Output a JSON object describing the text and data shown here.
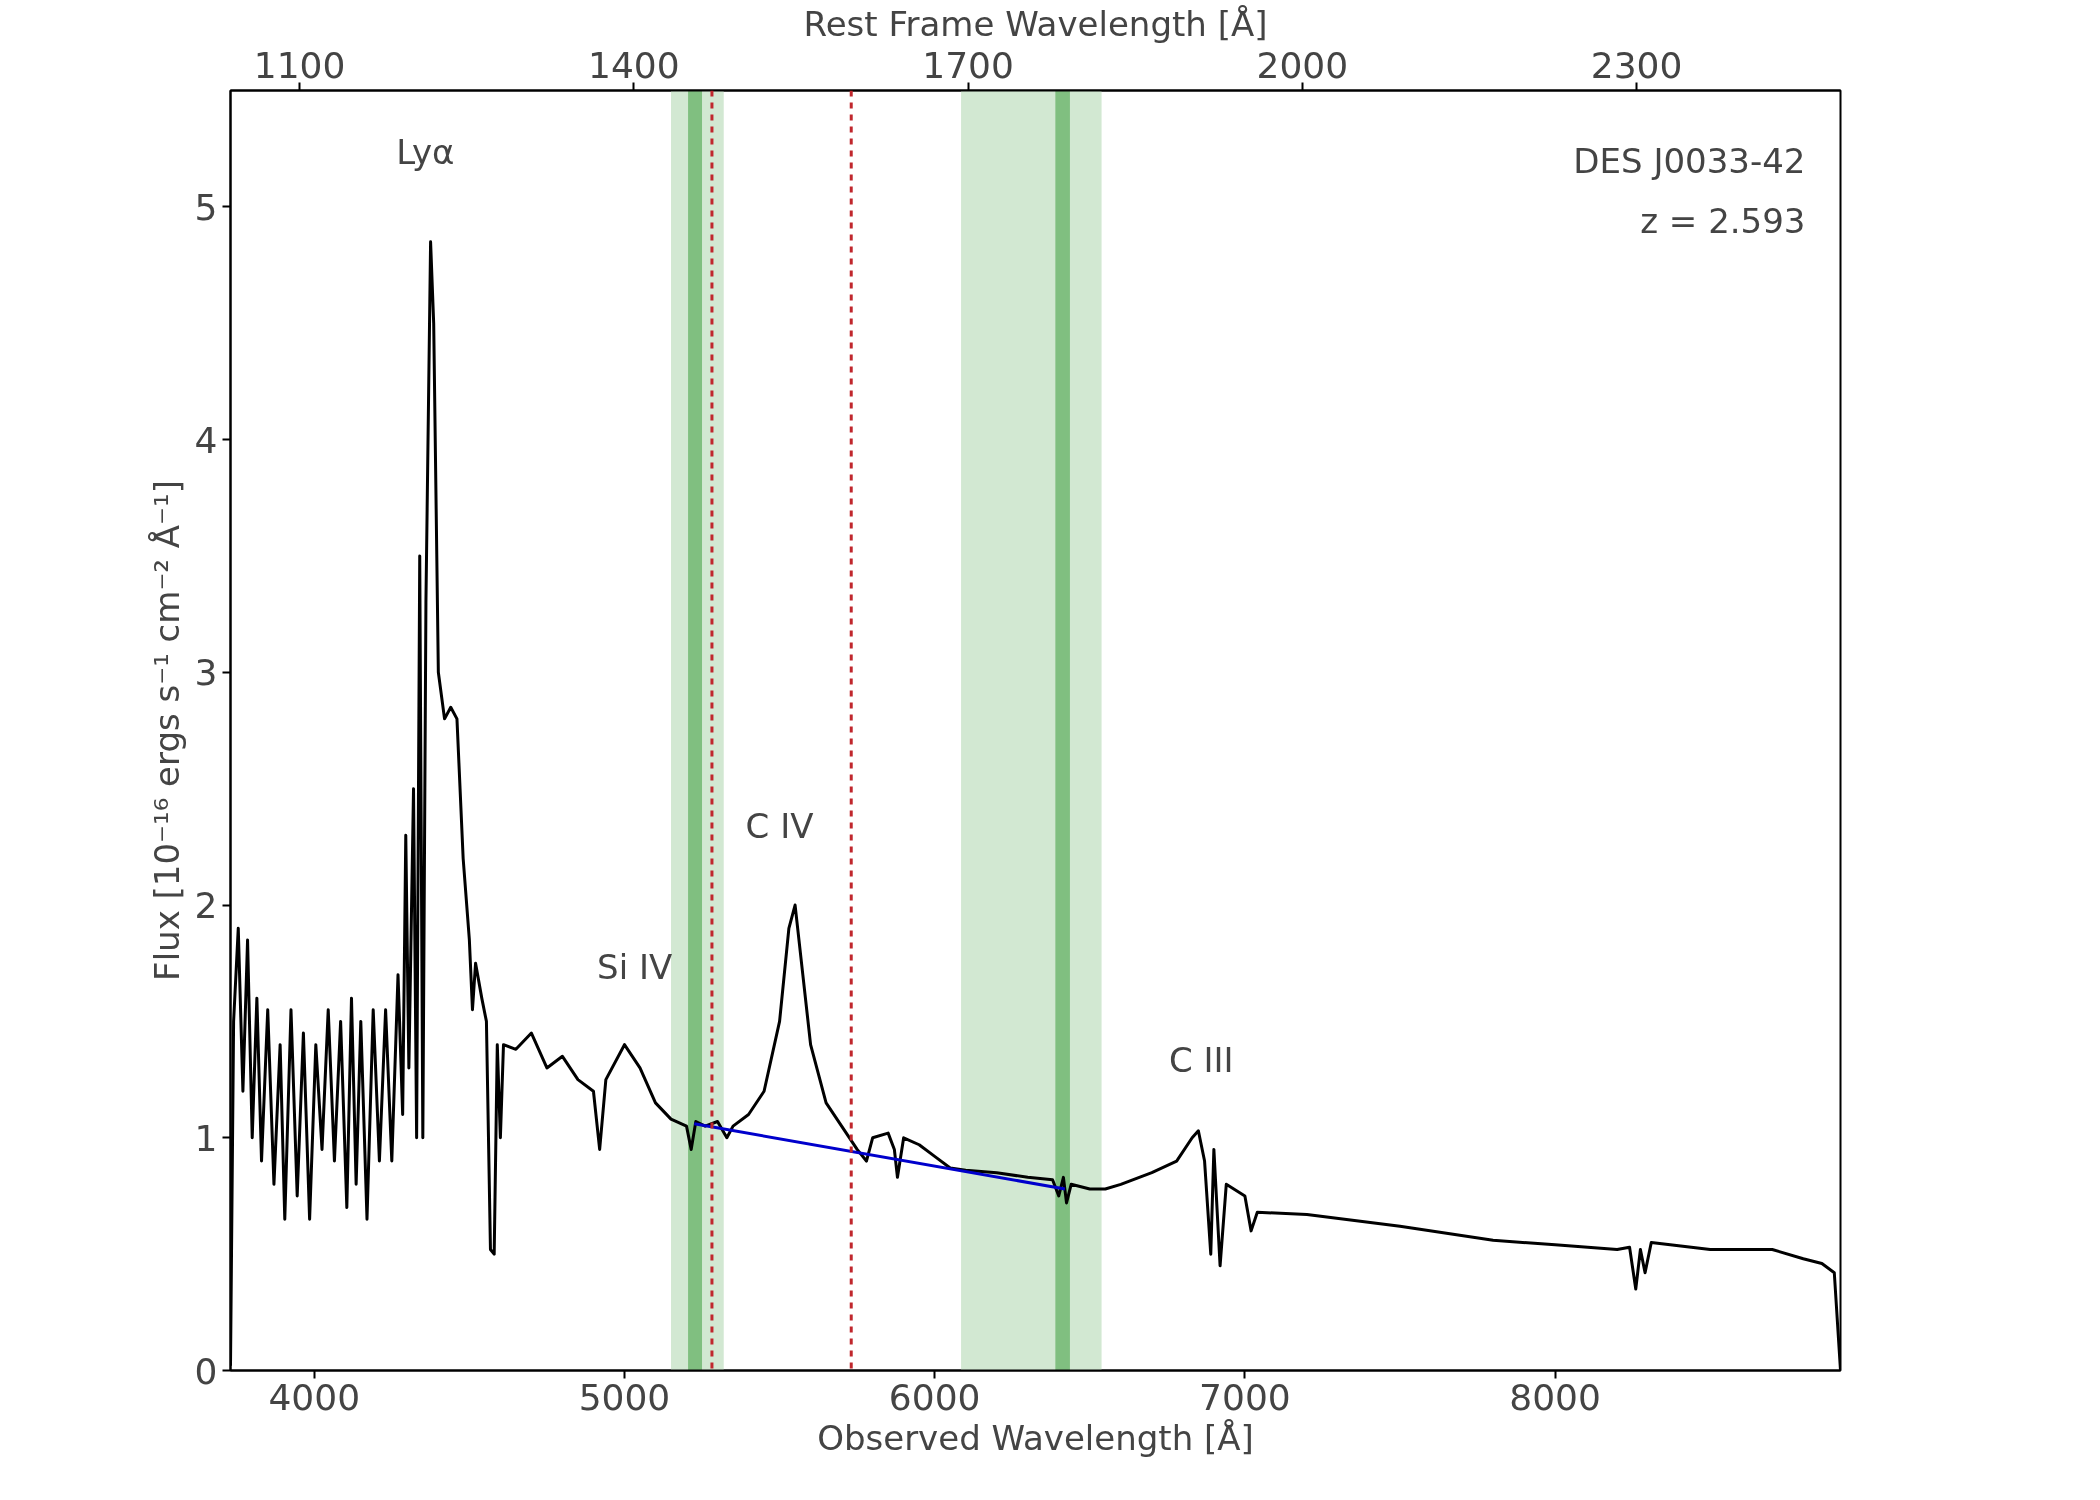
{
  "chart_data": {
    "type": "line",
    "xlabel": "Observed Wavelength [Å]",
    "ylabel": "Flux [10⁻¹⁶ ergs s⁻¹ cm⁻² Å⁻¹]",
    "x2label": "Rest Frame Wavelength [Å]",
    "xlim": [
      3730,
      8920
    ],
    "ylim": [
      0,
      5.5
    ],
    "xticks": [
      4000,
      5000,
      6000,
      7000,
      8000
    ],
    "yticks": [
      0,
      1,
      2,
      3,
      4,
      5
    ],
    "x2lim": [
      1038,
      2483
    ],
    "x2ticks": [
      1100,
      1400,
      1700,
      2000,
      2300
    ],
    "grid": false,
    "series": [
      {
        "color": "#000000",
        "x": [
          3730,
          3740,
          3755,
          3770,
          3785,
          3800,
          3815,
          3830,
          3850,
          3870,
          3890,
          3905,
          3925,
          3945,
          3965,
          3985,
          4005,
          4025,
          4045,
          4065,
          4085,
          4105,
          4120,
          4135,
          4150,
          4170,
          4190,
          4210,
          4230,
          4250,
          4270,
          4285,
          4295,
          4305,
          4320,
          4330,
          4340,
          4350,
          4360,
          4375,
          4385,
          4400,
          4420,
          4440,
          4460,
          4480,
          4500,
          4510,
          4520,
          4540,
          4555,
          4568,
          4580,
          4590,
          4600,
          4610,
          4650,
          4700,
          4750,
          4800,
          4850,
          4900,
          4920,
          4940,
          5000,
          5050,
          5100,
          5150,
          5200,
          5215,
          5230,
          5260,
          5300,
          5330,
          5350,
          5400,
          5450,
          5500,
          5530,
          5550,
          5575,
          5600,
          5650,
          5700,
          5750,
          5780,
          5800,
          5850,
          5870,
          5880,
          5900,
          5950,
          6000,
          6050,
          6100,
          6200,
          6300,
          6380,
          6400,
          6415,
          6425,
          6440,
          6500,
          6550,
          6600,
          6700,
          6780,
          6830,
          6850,
          6870,
          6890,
          6900,
          6920,
          6940,
          7000,
          7020,
          7040,
          7200,
          7500,
          7800,
          8000,
          8200,
          8240,
          8260,
          8275,
          8290,
          8310,
          8500,
          8700,
          8800,
          8860,
          8900,
          8920
        ],
        "values": [
          0.02,
          1.5,
          1.9,
          1.2,
          1.85,
          1.0,
          1.6,
          0.9,
          1.55,
          0.8,
          1.4,
          0.65,
          1.55,
          0.75,
          1.45,
          0.65,
          1.4,
          0.95,
          1.55,
          0.9,
          1.5,
          0.7,
          1.6,
          0.8,
          1.5,
          0.65,
          1.55,
          0.9,
          1.55,
          0.9,
          1.7,
          1.1,
          2.3,
          1.3,
          2.5,
          1.0,
          3.5,
          1.0,
          3.3,
          4.85,
          4.5,
          3.0,
          2.8,
          2.85,
          2.8,
          2.2,
          1.85,
          1.55,
          1.75,
          1.6,
          1.5,
          0.52,
          0.5,
          1.4,
          1.0,
          1.4,
          1.38,
          1.45,
          1.3,
          1.35,
          1.25,
          1.2,
          0.95,
          1.25,
          1.4,
          1.3,
          1.15,
          1.08,
          1.05,
          0.95,
          1.07,
          1.05,
          1.07,
          1.0,
          1.05,
          1.1,
          1.2,
          1.5,
          1.9,
          2.0,
          1.7,
          1.4,
          1.15,
          1.05,
          0.95,
          0.9,
          1.0,
          1.02,
          0.95,
          0.83,
          1.0,
          0.97,
          0.92,
          0.87,
          0.86,
          0.85,
          0.83,
          0.82,
          0.75,
          0.83,
          0.72,
          0.8,
          0.78,
          0.78,
          0.8,
          0.85,
          0.9,
          1.0,
          1.03,
          0.9,
          0.5,
          0.95,
          0.45,
          0.8,
          0.75,
          0.6,
          0.68,
          0.67,
          0.62,
          0.56,
          0.54,
          0.52,
          0.53,
          0.35,
          0.52,
          0.42,
          0.55,
          0.52,
          0.52,
          0.48,
          0.46,
          0.42,
          0.0
        ]
      },
      {
        "color": "#0000cc",
        "x": [
          5225,
          6420
        ],
        "values": [
          1.06,
          0.78
        ]
      }
    ],
    "bands": [
      {
        "axis": "x",
        "from": 5150,
        "to": 5320,
        "color": "#d2e8d2"
      },
      {
        "axis": "x",
        "from": 5205,
        "to": 5250,
        "color": "#80bf80"
      },
      {
        "axis": "x",
        "from": 6085,
        "to": 6538,
        "color": "#d2e8d2"
      },
      {
        "axis": "x",
        "from": 6389,
        "to": 6436,
        "color": "#80bf80"
      }
    ],
    "ref_lines": [
      {
        "axis": "x",
        "value": 5282,
        "color": "#c0272d",
        "line_style": "dashed"
      },
      {
        "axis": "x",
        "value": 5731,
        "color": "#c0272d",
        "line_style": "dashed"
      }
    ],
    "annotations": [
      "Lyα",
      "Si IV",
      "C IV",
      "C III",
      "DES J0033-42",
      "z = 2.593"
    ]
  }
}
